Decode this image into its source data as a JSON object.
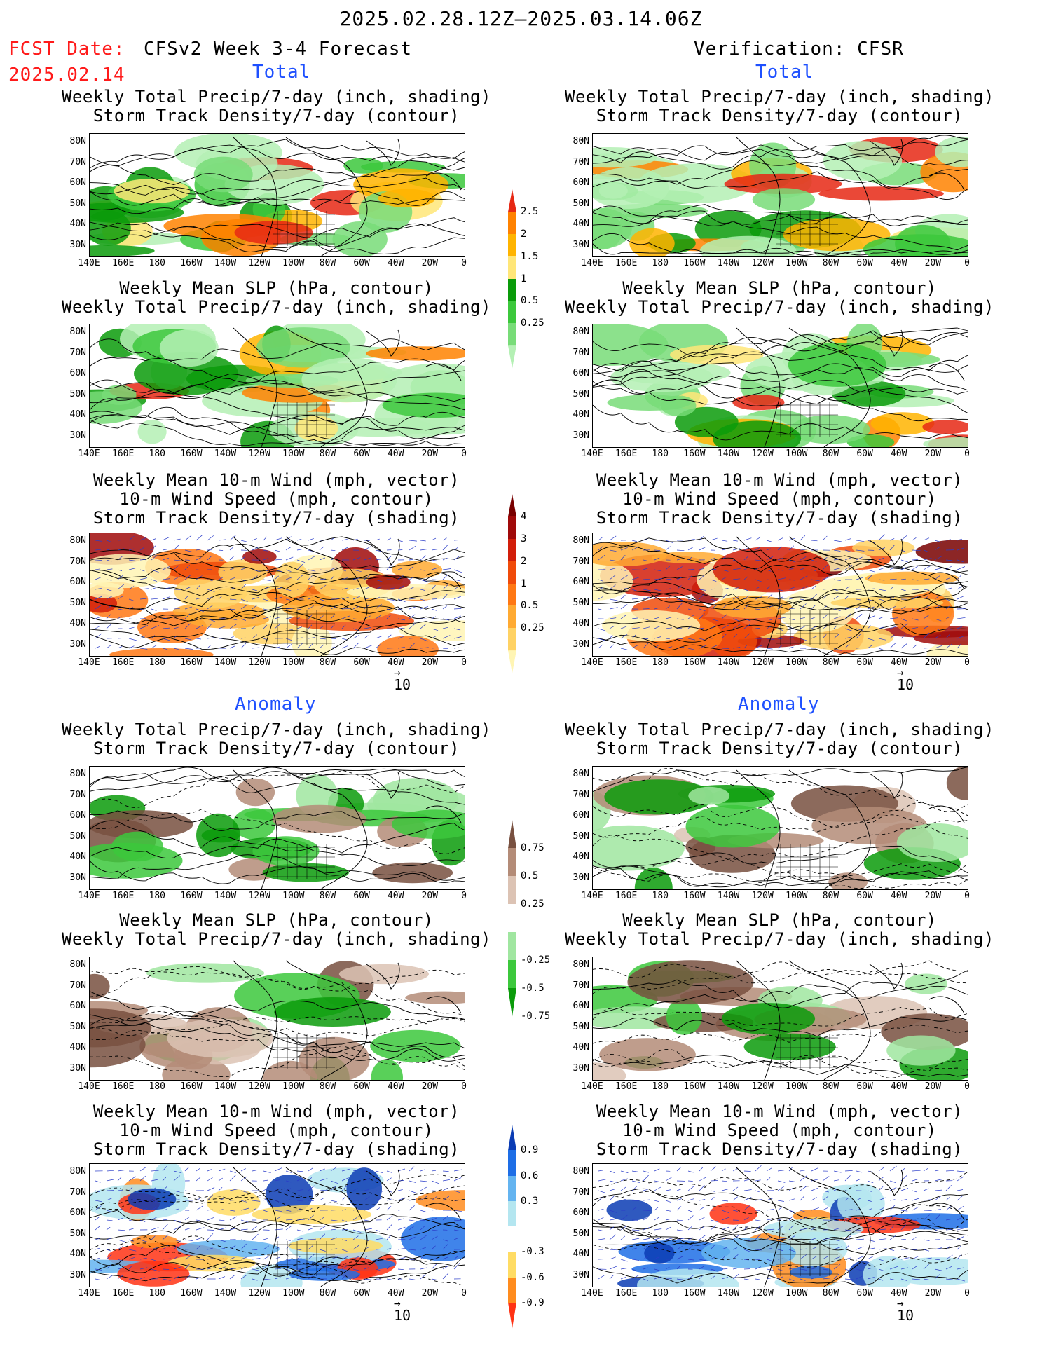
{
  "header": {
    "date_range": "2025.02.28.12Z–2025.03.14.06Z",
    "fcst_label": "FCST Date:",
    "fcst_date": "2025.02.14",
    "left_title": "CFSv2 Week 3-4 Forecast",
    "right_title": "Verification: CFSR"
  },
  "sections": {
    "total": "Total",
    "anomaly": "Anomaly"
  },
  "panel_titles": {
    "precip_storm": "Weekly Total Precip/7-day (inch, shading)\nStorm Track Density/7-day (contour)",
    "slp_precip": "Weekly Mean SLP (hPa, contour)\nWeekly Total Precip/7-day (inch, shading)",
    "wind_storm": "Weekly Mean 10-m Wind (mph, vector)\n10-m Wind Speed (mph, contour)\nStorm Track Density/7-day (shading)"
  },
  "axes": {
    "lat": [
      "80N",
      "70N",
      "60N",
      "50N",
      "40N",
      "30N"
    ],
    "lon": [
      "140E",
      "160E",
      "180",
      "160W",
      "140W",
      "120W",
      "100W",
      "80W",
      "60W",
      "40W",
      "20W",
      "0"
    ]
  },
  "colorbars": {
    "precip_total": [
      "2.5",
      "2",
      "1.5",
      "1",
      "0.5",
      "0.25"
    ],
    "storm_total": [
      "4",
      "3",
      "2",
      "1",
      "0.5",
      "0.25"
    ],
    "precip_anom": [
      "0.75",
      "0.5",
      "0.25",
      "-0.25",
      "-0.5",
      "-0.75"
    ],
    "storm_anom": [
      "0.9",
      "0.6",
      "0.3",
      "-0.3",
      "-0.6",
      "-0.9"
    ]
  },
  "vector_ref": "10",
  "colors": {
    "header_red": "#ff1a1a",
    "section_blue": "#1e50ff",
    "precip_scale": [
      "#b4f0b4",
      "#78dc78",
      "#3cc83c",
      "#0a9b0a",
      "#ffe678",
      "#ffb400",
      "#ff8200",
      "#e62814"
    ],
    "storm_scale": [
      "#fff5b4",
      "#ffd264",
      "#ffaa32",
      "#ff7814",
      "#f04b0a",
      "#d21e0a",
      "#a00a0a",
      "#780000"
    ],
    "anom_precip": [
      "#0a9b0a",
      "#3cc83c",
      "#a0e6a0",
      "#ffffff",
      "#dcc3b4",
      "#b48c78",
      "#785040"
    ],
    "anom_storm": [
      "#ff3214",
      "#ff8c1e",
      "#ffdc64",
      "#ffffff",
      "#b4e6f0",
      "#64b4f0",
      "#1e6ee6",
      "#0a3cb4"
    ]
  }
}
